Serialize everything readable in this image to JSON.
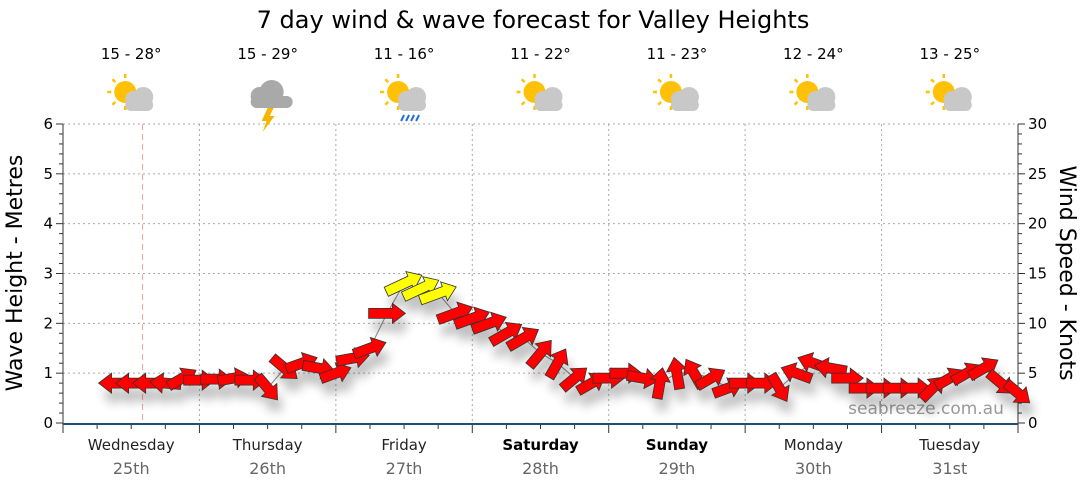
{
  "chart_data": {
    "type": "scatter",
    "title": "7 day wind & wave forecast for Valley Heights",
    "ylabel": "Wave Height - Metres",
    "y2label": "Wind Speed - Knots",
    "ylim": [
      0,
      6
    ],
    "y2lim": [
      0,
      30
    ],
    "yticks": [
      "0",
      "1",
      "2",
      "3",
      "4",
      "5",
      "6"
    ],
    "y2ticks": [
      "0",
      "5",
      "10",
      "15",
      "20",
      "25",
      "30"
    ],
    "grid": true,
    "days": [
      {
        "name": "Wednesday",
        "date": "25th",
        "bold": false,
        "temp": "15 - 28°",
        "icon": "partly-cloudy"
      },
      {
        "name": "Thursday",
        "date": "26th",
        "bold": false,
        "temp": "15 - 29°",
        "icon": "storm"
      },
      {
        "name": "Friday",
        "date": "27th",
        "bold": false,
        "temp": "11 - 16°",
        "icon": "partly-cloudy-rain"
      },
      {
        "name": "Saturday",
        "date": "28th",
        "bold": true,
        "temp": "11 - 22°",
        "icon": "partly-cloudy"
      },
      {
        "name": "Sunday",
        "date": "29th",
        "bold": true,
        "temp": "11 - 23°",
        "icon": "partly-cloudy"
      },
      {
        "name": "Monday",
        "date": "30th",
        "bold": false,
        "temp": "12 - 24°",
        "icon": "partly-cloudy"
      },
      {
        "name": "Tuesday",
        "date": "31st",
        "bold": false,
        "temp": "13 - 25°",
        "icon": "partly-cloudy"
      }
    ],
    "now_hour": 14,
    "wind_series": {
      "name": "Wind speed (knots) and direction",
      "hours": [
        9,
        12,
        15,
        18,
        21,
        24,
        27,
        30,
        33,
        36,
        39,
        42,
        45,
        48,
        51,
        54,
        57,
        60,
        63,
        66,
        69,
        72,
        75,
        78,
        81,
        84,
        87,
        90,
        93,
        96,
        99,
        102,
        105,
        108,
        111,
        114,
        117,
        120,
        123,
        126,
        129,
        132,
        135,
        138,
        141,
        144,
        147,
        150,
        153,
        156,
        159,
        162,
        165,
        168
      ],
      "speed": [
        4,
        4,
        4,
        4,
        4.5,
        4.3,
        4.4,
        4.5,
        4.3,
        3.5,
        5.5,
        6,
        5.5,
        5,
        6.5,
        7.5,
        11,
        14,
        13.5,
        13,
        11,
        10.5,
        10,
        9,
        8.5,
        7,
        6,
        4.5,
        4,
        4.5,
        5,
        4.5,
        4,
        5,
        5,
        4.5,
        3.5,
        4,
        4,
        3.5,
        5,
        6,
        5.5,
        4.5,
        3.5,
        3.5,
        3.5,
        3.5,
        3.5,
        4.5,
        5,
        5.5,
        4,
        3
      ],
      "arrow_angle": [
        180,
        180,
        180,
        185,
        -30,
        0,
        0,
        -10,
        0,
        50,
        40,
        -20,
        10,
        -20,
        -10,
        -20,
        0,
        -25,
        -25,
        -20,
        -20,
        -20,
        -20,
        -30,
        -30,
        -50,
        -60,
        -40,
        -30,
        0,
        0,
        10,
        -80,
        -100,
        -120,
        -30,
        -20,
        0,
        0,
        60,
        200,
        200,
        190,
        0,
        0,
        0,
        0,
        0,
        -45,
        -30,
        -30,
        -30,
        40,
        40
      ]
    },
    "colors": {
      "wind_low": "#ff0000",
      "wind_mid": "#ffff00",
      "arrow_stroke": "#333333",
      "grid": "#aaaaaa",
      "now_line": "#f4a0a0",
      "axis": "#1f4e79"
    },
    "yellow_threshold_knots": 12,
    "watermark": "seabreeze.com.au"
  }
}
